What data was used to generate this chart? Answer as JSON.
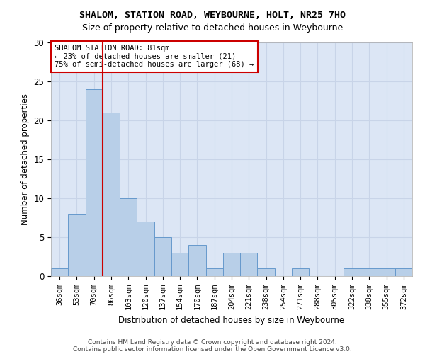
{
  "title": "SHALOM, STATION ROAD, WEYBOURNE, HOLT, NR25 7HQ",
  "subtitle": "Size of property relative to detached houses in Weybourne",
  "xlabel": "Distribution of detached houses by size in Weybourne",
  "ylabel": "Number of detached properties",
  "categories": [
    "36sqm",
    "53sqm",
    "70sqm",
    "86sqm",
    "103sqm",
    "120sqm",
    "137sqm",
    "154sqm",
    "170sqm",
    "187sqm",
    "204sqm",
    "221sqm",
    "238sqm",
    "254sqm",
    "271sqm",
    "288sqm",
    "305sqm",
    "322sqm",
    "338sqm",
    "355sqm",
    "372sqm"
  ],
  "values": [
    1,
    8,
    24,
    21,
    10,
    7,
    5,
    3,
    4,
    1,
    3,
    3,
    1,
    0,
    1,
    0,
    0,
    1,
    1,
    1,
    1
  ],
  "bar_color": "#b8cfe8",
  "bar_edge_color": "#6699cc",
  "vline_x": 2.5,
  "vline_color": "#cc0000",
  "annotation_text": "SHALOM STATION ROAD: 81sqm\n← 23% of detached houses are smaller (21)\n75% of semi-detached houses are larger (68) →",
  "annotation_box_color": "#ffffff",
  "annotation_box_edge": "#cc0000",
  "ylim": [
    0,
    30
  ],
  "yticks": [
    0,
    5,
    10,
    15,
    20,
    25,
    30
  ],
  "grid_color": "#c8d4e8",
  "plot_bg_color": "#dce6f5",
  "fig_bg_color": "#ffffff",
  "footer1": "Contains HM Land Registry data © Crown copyright and database right 2024.",
  "footer2": "Contains public sector information licensed under the Open Government Licence v3.0.",
  "title_fontsize": 9.5,
  "subtitle_fontsize": 9,
  "xlabel_fontsize": 8.5,
  "ylabel_fontsize": 8.5,
  "tick_fontsize": 7.5,
  "annot_fontsize": 7.5,
  "footer_fontsize": 6.5
}
